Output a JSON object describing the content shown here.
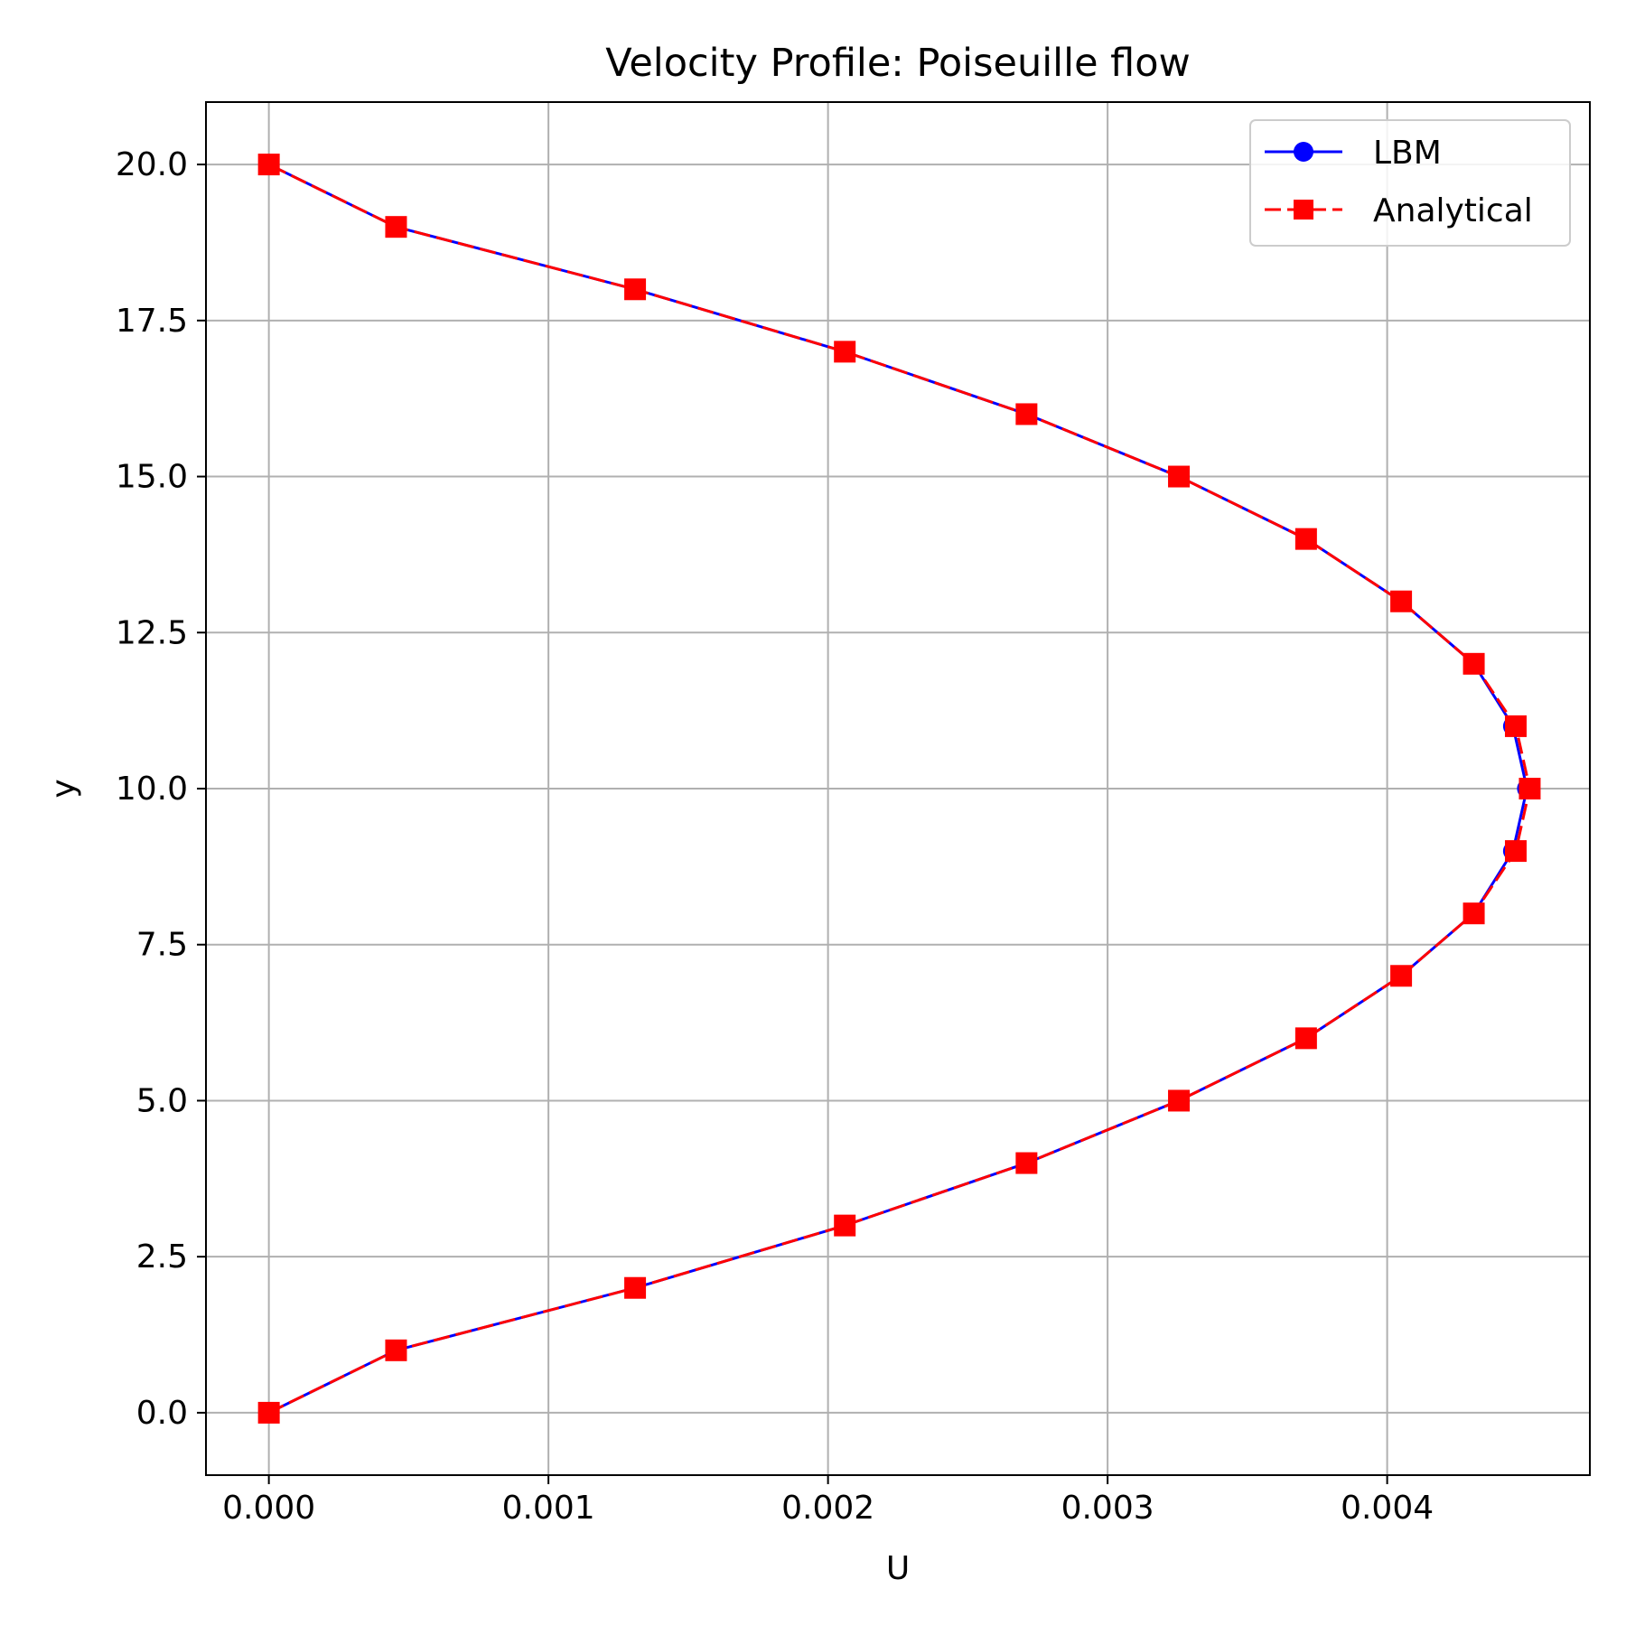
{
  "chart_data": {
    "type": "line",
    "title": "Velocity Profile: Poiseuille flow",
    "xlabel": "U",
    "ylabel": "y",
    "xlim": [
      -0.000225,
      0.004725
    ],
    "ylim": [
      -1.0,
      21.0
    ],
    "xticks": [
      0.0,
      0.001,
      0.002,
      0.003,
      0.004
    ],
    "xtick_labels": [
      "0.000",
      "0.001",
      "0.002",
      "0.003",
      "0.004"
    ],
    "yticks": [
      0.0,
      2.5,
      5.0,
      7.5,
      10.0,
      12.5,
      15.0,
      17.5,
      20.0
    ],
    "ytick_labels": [
      "0.0",
      "2.5",
      "5.0",
      "7.5",
      "10.0",
      "12.5",
      "15.0",
      "17.5",
      "20.0"
    ],
    "grid": true,
    "legend_position": "upper right",
    "series": [
      {
        "name": "LBM",
        "color": "#0000ff",
        "line_style": "solid",
        "marker": "circle",
        "x": [
          0.0,
          0.000455,
          0.00131,
          0.00206,
          0.00271,
          0.003255,
          0.00371,
          0.00405,
          0.00431,
          0.00445,
          0.0045,
          0.00445,
          0.00431,
          0.00405,
          0.00371,
          0.003255,
          0.00271,
          0.00206,
          0.00131,
          0.000455,
          0.0
        ],
        "y": [
          0,
          1,
          2,
          3,
          4,
          5,
          6,
          7,
          8,
          9,
          10,
          11,
          12,
          13,
          14,
          15,
          16,
          17,
          18,
          19,
          20
        ]
      },
      {
        "name": "Analytical",
        "color": "#ff0000",
        "line_style": "dashed",
        "marker": "square",
        "x": [
          0.0,
          0.000455,
          0.00131,
          0.00206,
          0.00271,
          0.003255,
          0.00371,
          0.00405,
          0.00431,
          0.00446,
          0.00451,
          0.00446,
          0.00431,
          0.00405,
          0.00371,
          0.003255,
          0.00271,
          0.00206,
          0.00131,
          0.000455,
          0.0
        ],
        "y": [
          0,
          1,
          2,
          3,
          4,
          5,
          6,
          7,
          8,
          9,
          10,
          11,
          12,
          13,
          14,
          15,
          16,
          17,
          18,
          19,
          20
        ]
      }
    ]
  }
}
